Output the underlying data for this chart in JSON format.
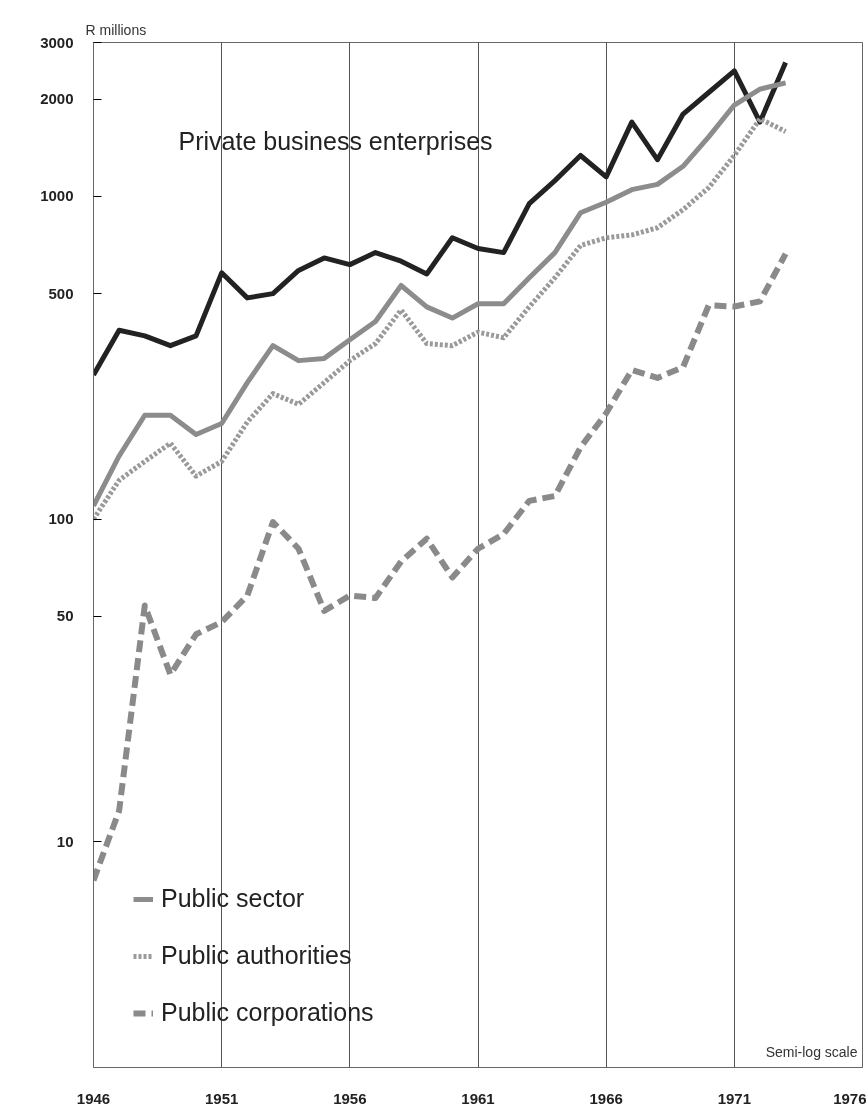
{
  "chart_data": {
    "type": "line",
    "ylabel": "R millions",
    "log": "y",
    "grid": "x",
    "legend": "bottom left",
    "x": [
      1946,
      1947,
      1948,
      1949,
      1950,
      1951,
      1952,
      1953,
      1954,
      1955,
      1956,
      1957,
      1958,
      1959,
      1960,
      1961,
      1962,
      1963,
      1964,
      1965,
      1966,
      1967,
      1968,
      1969,
      1970,
      1971,
      1972,
      1973
    ],
    "xlim": [
      1946,
      1976
    ],
    "xticks": [
      1946,
      1951,
      1956,
      1961,
      1966,
      1971,
      1976
    ],
    "ylim": [
      2,
      3000
    ],
    "yticks": [
      10,
      50,
      100,
      500,
      1000,
      2000,
      3000
    ],
    "annotations": [
      "Semi-log scale"
    ],
    "series": [
      {
        "name": "Private business enterprises",
        "color": "#222222",
        "line_style": "solid",
        "values": [
          280,
          385,
          370,
          345,
          370,
          580,
          485,
          500,
          590,
          645,
          615,
          670,
          630,
          575,
          745,
          690,
          670,
          950,
          1120,
          1340,
          1150,
          1700,
          1300,
          1800,
          2100,
          2450,
          1700,
          2600
        ]
      },
      {
        "name": "Public sector",
        "color": "#8c8c8c",
        "line_style": "solid",
        "values": [
          110,
          157,
          210,
          210,
          183,
          198,
          265,
          345,
          310,
          315,
          360,
          410,
          530,
          455,
          420,
          465,
          465,
          560,
          670,
          890,
          960,
          1050,
          1090,
          1240,
          1530,
          1920,
          2150,
          2250
        ]
      },
      {
        "name": "Public authorities",
        "color": "#9a9a9a",
        "line_style": "dotted",
        "values": [
          100,
          132,
          151,
          172,
          136,
          151,
          200,
          245,
          227,
          265,
          310,
          350,
          445,
          350,
          345,
          380,
          365,
          455,
          560,
          705,
          745,
          760,
          800,
          910,
          1065,
          1340,
          1740,
          1590
        ]
      },
      {
        "name": "Public corporations",
        "color": "#8a8a8a",
        "line_style": "dashed",
        "values": [
          7.6,
          12.5,
          54,
          33,
          44,
          48,
          58,
          98,
          81,
          52,
          58,
          57,
          74,
          87,
          66,
          81,
          90,
          114,
          118,
          167,
          213,
          290,
          274,
          296,
          460,
          456,
          473,
          664
        ]
      }
    ]
  }
}
